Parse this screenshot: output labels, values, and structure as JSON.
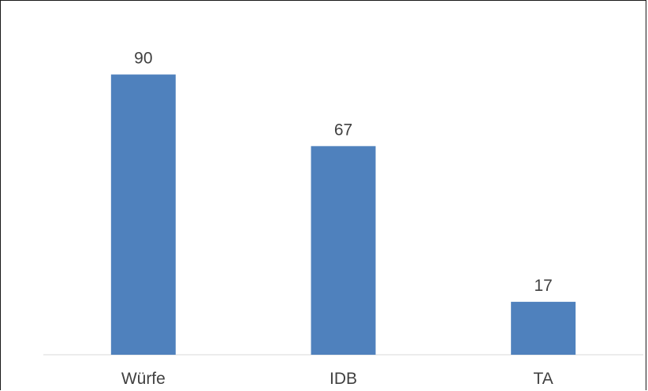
{
  "chart_data": {
    "type": "bar",
    "categories": [
      "Würfe",
      "IDB",
      "TA"
    ],
    "values": [
      90,
      67,
      17
    ],
    "data_labels": [
      "90",
      "67",
      "17"
    ],
    "title": "",
    "xlabel": "",
    "ylabel": "",
    "ylim": [
      0,
      100
    ],
    "grid": false,
    "legend": "none",
    "bar_color": "#4f81bd",
    "axis_color": "#d9d9d9",
    "label_color": "#404040"
  }
}
